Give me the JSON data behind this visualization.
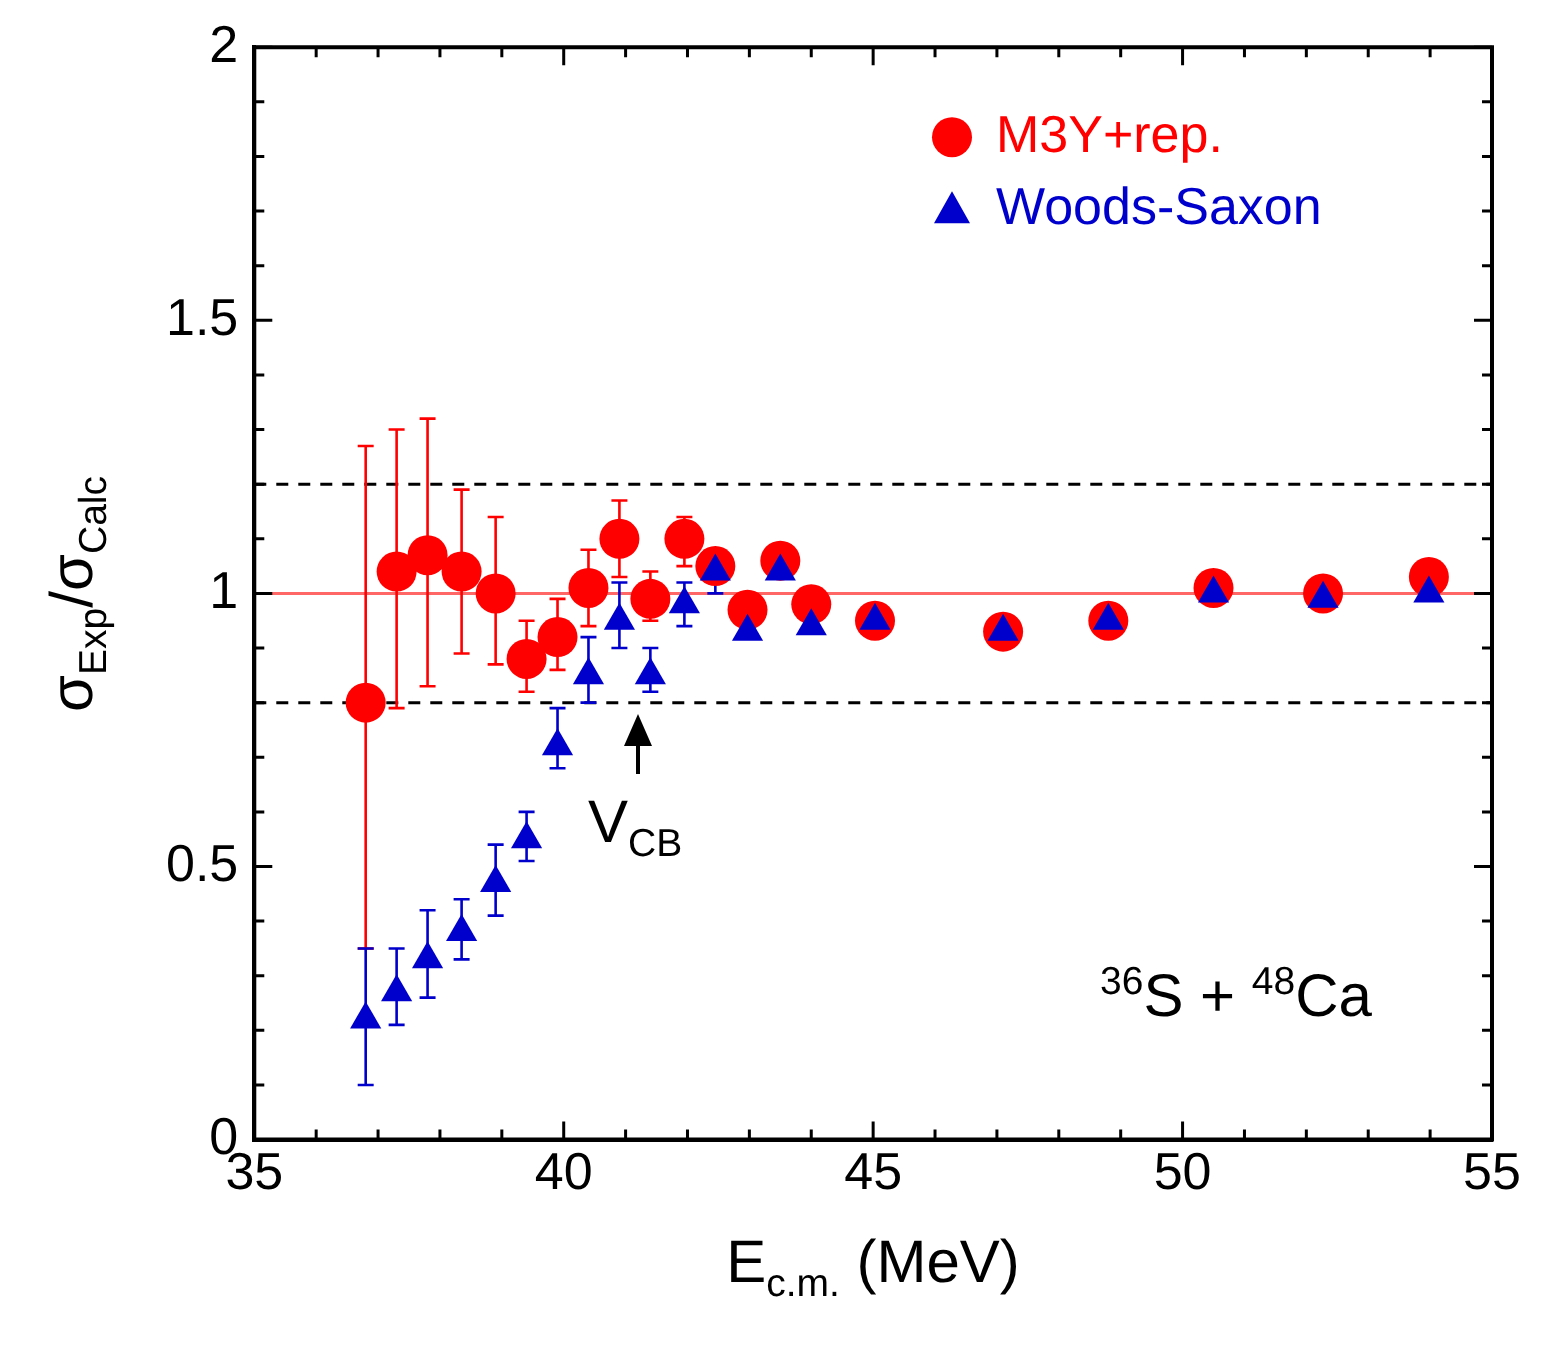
{
  "chart_data": {
    "type": "scatter",
    "xlabel": "E$_{c.m.}$ (MeV)",
    "ylabel": "σ$_{Exp}$/σ$_{Calc}$",
    "xlim": [
      35,
      55
    ],
    "xticks": [
      35,
      {
        "value": 36,
        "label": null
      },
      {
        "value": 37,
        "label": null
      },
      {
        "value": 38,
        "label": null
      },
      {
        "value": 39,
        "label": null
      },
      40,
      {
        "value": 41,
        "label": null
      },
      {
        "value": 42,
        "label": null
      },
      {
        "value": 43,
        "label": null
      },
      {
        "value": 44,
        "label": null
      },
      45,
      {
        "value": 46,
        "label": null
      },
      {
        "value": 47,
        "label": null
      },
      {
        "value": 48,
        "label": null
      },
      {
        "value": 49,
        "label": null
      },
      50,
      {
        "value": 51,
        "label": null
      },
      {
        "value": 52,
        "label": null
      },
      {
        "value": 53,
        "label": null
      },
      {
        "value": 54,
        "label": null
      },
      55
    ],
    "ylim": [
      0,
      2
    ],
    "yticks": [
      0,
      {
        "value": 0.1,
        "label": null
      },
      {
        "value": 0.2,
        "label": null
      },
      {
        "value": 0.3,
        "label": null
      },
      {
        "value": 0.4,
        "label": null
      },
      0.5,
      {
        "value": 0.6,
        "label": null
      },
      {
        "value": 0.7,
        "label": null
      },
      {
        "value": 0.8,
        "label": null
      },
      {
        "value": 0.9,
        "label": null
      },
      1,
      {
        "value": 1.1,
        "label": null
      },
      {
        "value": 1.2,
        "label": null
      },
      {
        "value": 1.3,
        "label": null
      },
      {
        "value": 1.4,
        "label": null
      },
      1.5,
      {
        "value": 1.6,
        "label": null
      },
      {
        "value": 1.7,
        "label": null
      },
      {
        "value": 1.8,
        "label": null
      },
      {
        "value": 1.9,
        "label": null
      },
      2
    ],
    "grid": false,
    "legend": "top right",
    "series": [
      {
        "name": "M3Y+rep.",
        "color": "#ff0000",
        "marker": "circle",
        "x": [
          36.8,
          37.3,
          37.8,
          38.35,
          38.9,
          39.4,
          39.9,
          40.4,
          40.9,
          41.4,
          41.95,
          42.45,
          42.97,
          43.5,
          44.0,
          45.03,
          47.1,
          48.8,
          50.5,
          52.27,
          53.98
        ],
        "values": [
          0.8,
          1.04,
          1.07,
          1.04,
          1.0,
          0.88,
          0.92,
          1.01,
          1.1,
          0.99,
          1.1,
          1.05,
          0.97,
          1.06,
          0.98,
          0.95,
          0.93,
          0.95,
          1.01,
          1.0,
          1.03
        ],
        "errors": [
          [
            0.35,
            1.27
          ],
          [
            0.79,
            1.3
          ],
          [
            0.83,
            1.32
          ],
          [
            0.89,
            1.19
          ],
          [
            0.87,
            1.14
          ],
          [
            0.82,
            0.95
          ],
          [
            0.86,
            0.99
          ],
          [
            0.94,
            1.08
          ],
          [
            1.03,
            1.17
          ],
          [
            0.95,
            1.04
          ],
          [
            1.05,
            1.14
          ],
          null,
          null,
          null,
          null,
          null,
          null,
          null,
          null,
          null,
          null
        ]
      },
      {
        "name": "Woods-Saxon",
        "color": "#0000cc",
        "marker": "triangle",
        "x": [
          36.8,
          37.3,
          37.8,
          38.35,
          38.9,
          39.4,
          39.9,
          40.4,
          40.9,
          41.4,
          41.95,
          42.45,
          42.97,
          43.5,
          44.0,
          45.03,
          47.1,
          48.8,
          50.5,
          52.27,
          53.98
        ],
        "values": [
          0.22,
          0.27,
          0.33,
          0.38,
          0.47,
          0.55,
          0.72,
          0.85,
          0.95,
          0.85,
          0.98,
          1.04,
          0.93,
          1.04,
          0.94,
          0.95,
          0.93,
          0.95,
          1.0,
          0.99,
          1.0
        ],
        "errors": [
          [
            0.1,
            0.35
          ],
          [
            0.21,
            0.35
          ],
          [
            0.26,
            0.42
          ],
          [
            0.33,
            0.44
          ],
          [
            0.41,
            0.54
          ],
          [
            0.51,
            0.6
          ],
          [
            0.68,
            0.79
          ],
          [
            0.8,
            0.92
          ],
          [
            0.9,
            1.02
          ],
          [
            0.82,
            0.9
          ],
          [
            0.94,
            1.02
          ],
          [
            1.0,
            1.08
          ],
          null,
          null,
          null,
          null,
          null,
          null,
          null,
          null,
          null
        ]
      }
    ],
    "ref_lines": [
      {
        "axis": "y",
        "value": 1,
        "label": null,
        "color": "#ff6666",
        "line_style": "solid"
      },
      {
        "axis": "y",
        "value": 0.8,
        "label": null,
        "color": "#000000",
        "line_style": "dashed"
      },
      {
        "axis": "y",
        "value": 1.2,
        "label": null,
        "color": "#000000",
        "line_style": "dashed"
      }
    ],
    "annotations": [
      "V$_{CB}$",
      "$^{36}$S + $^{48}$Ca"
    ]
  }
}
